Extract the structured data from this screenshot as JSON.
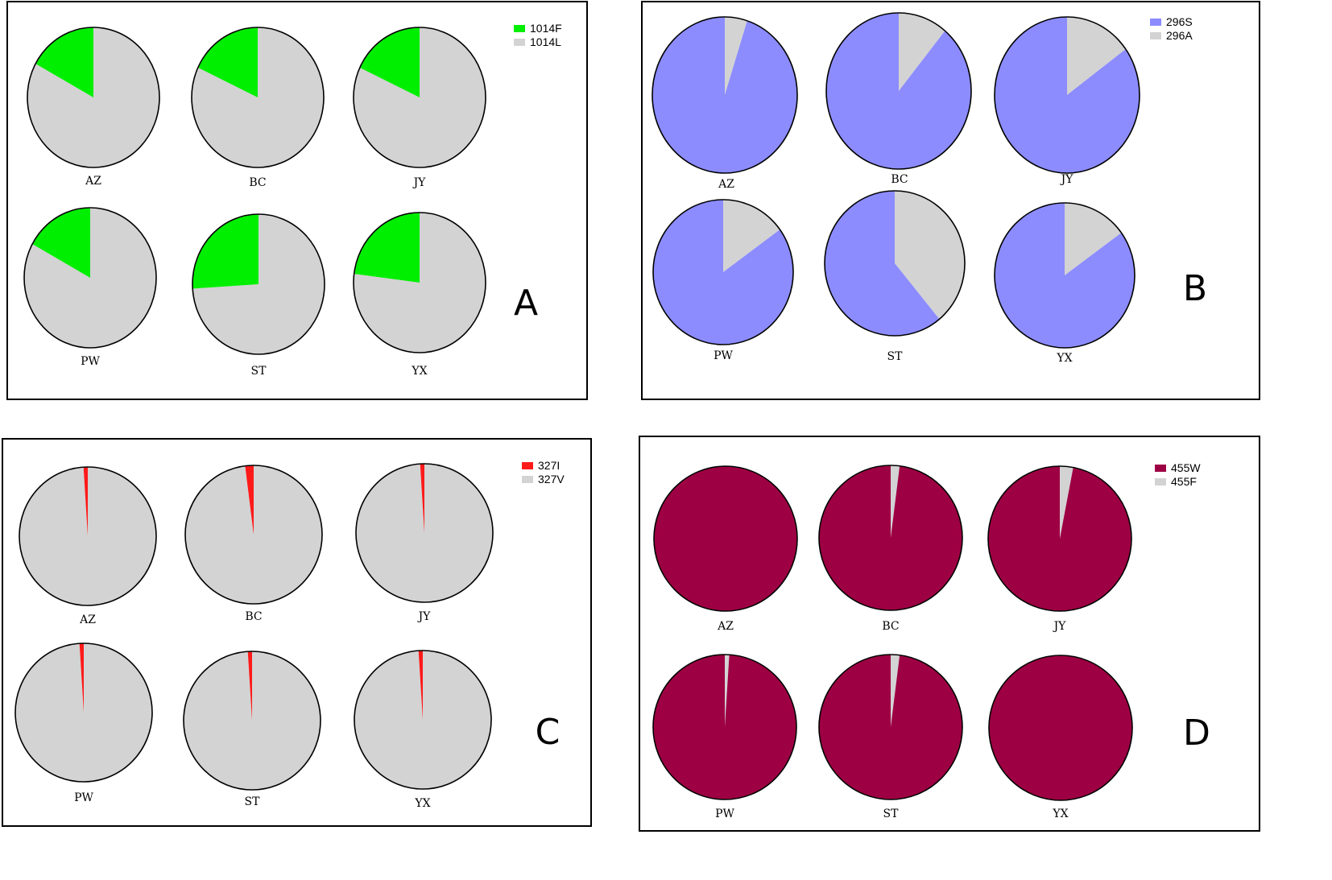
{
  "chart_data": [
    {
      "type": "pie",
      "panel": "A",
      "legend": [
        {
          "label": "1014F",
          "color": "#00ee00"
        },
        {
          "label": "1014L",
          "color": "#d3d3d3"
        }
      ],
      "pies": [
        {
          "label": "AZ",
          "values": [
            17,
            83
          ]
        },
        {
          "label": "BC",
          "values": [
            18,
            82
          ]
        },
        {
          "label": "JY",
          "values": [
            18,
            82
          ]
        },
        {
          "label": "PW",
          "values": [
            17,
            83
          ]
        },
        {
          "label": "ST",
          "values": [
            26,
            74
          ]
        },
        {
          "label": "YX",
          "values": [
            23,
            77
          ]
        }
      ]
    },
    {
      "type": "pie",
      "panel": "B",
      "legend": [
        {
          "label": "296S",
          "color": "#8c8cff"
        },
        {
          "label": "296A",
          "color": "#d3d3d3"
        }
      ],
      "pies": [
        {
          "label": "AZ",
          "values": [
            95,
            5
          ]
        },
        {
          "label": "BC",
          "values": [
            89,
            11
          ]
        },
        {
          "label": "JY",
          "values": [
            85,
            15
          ]
        },
        {
          "label": "PW",
          "values": [
            85,
            15
          ]
        },
        {
          "label": "ST",
          "values": [
            61,
            39
          ]
        },
        {
          "label": "YX",
          "values": [
            85,
            15
          ]
        }
      ]
    },
    {
      "type": "pie",
      "panel": "C",
      "legend": [
        {
          "label": "327I",
          "color": "#ff1a1a"
        },
        {
          "label": "327V",
          "color": "#d3d3d3"
        }
      ],
      "pies": [
        {
          "label": "AZ",
          "values": [
            1,
            99
          ]
        },
        {
          "label": "BC",
          "values": [
            2,
            98
          ]
        },
        {
          "label": "JY",
          "values": [
            1,
            99
          ]
        },
        {
          "label": "PW",
          "values": [
            1,
            99
          ]
        },
        {
          "label": "ST",
          "values": [
            1,
            99
          ]
        },
        {
          "label": "YX",
          "values": [
            1,
            99
          ]
        }
      ]
    },
    {
      "type": "pie",
      "panel": "D",
      "legend": [
        {
          "label": "455W",
          "color": "#9e0044"
        },
        {
          "label": "455F",
          "color": "#d3d3d3"
        }
      ],
      "pies": [
        {
          "label": "AZ",
          "values": [
            100,
            0
          ]
        },
        {
          "label": "BC",
          "values": [
            98,
            2
          ]
        },
        {
          "label": "JY",
          "values": [
            97,
            3
          ]
        },
        {
          "label": "PW",
          "values": [
            99,
            1
          ]
        },
        {
          "label": "ST",
          "values": [
            98,
            2
          ]
        },
        {
          "label": "YX",
          "values": [
            100,
            0
          ]
        }
      ]
    }
  ]
}
